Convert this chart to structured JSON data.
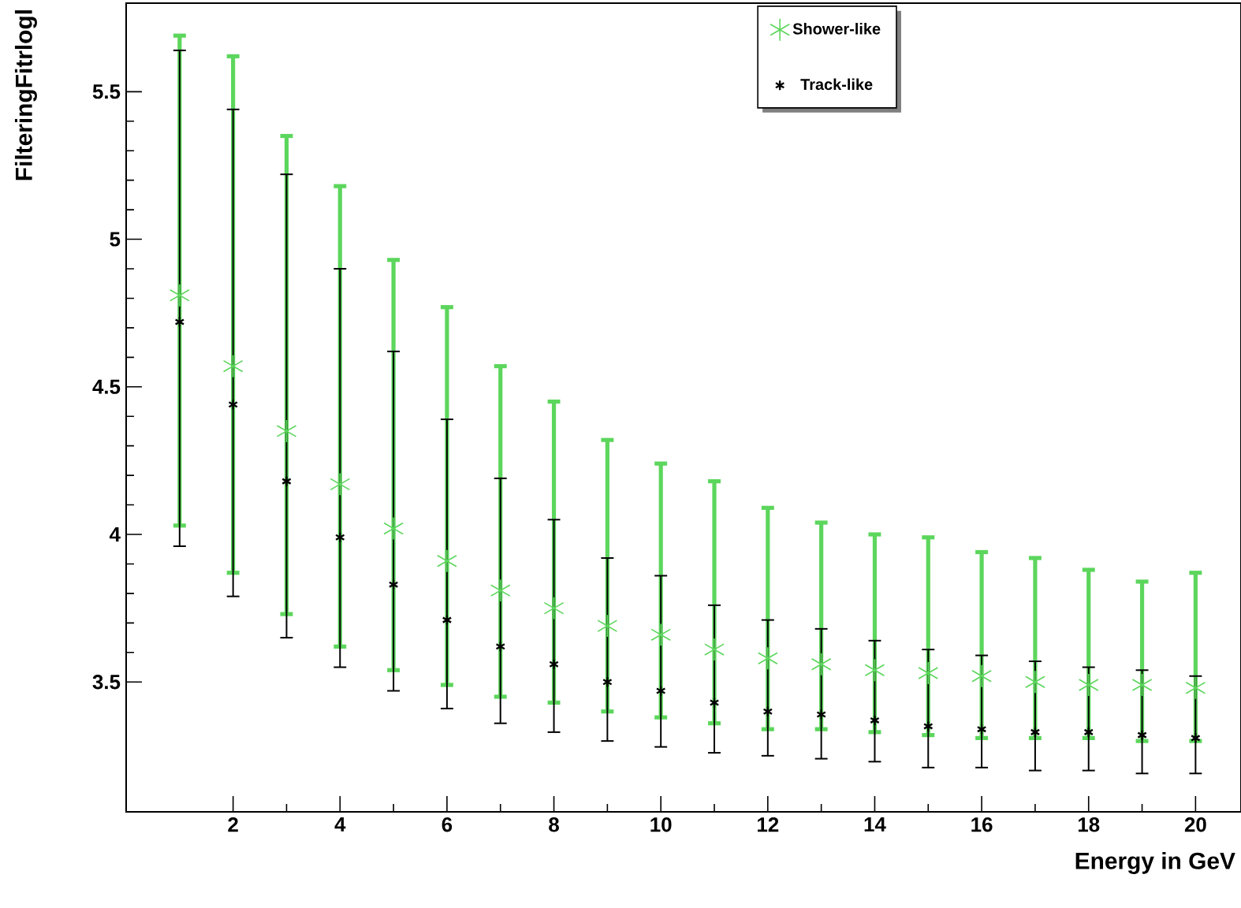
{
  "chart_data": {
    "type": "scatter",
    "xlabel": "Energy in GeV",
    "ylabel": "FilteringFitrlogl",
    "x": [
      1,
      2,
      3,
      4,
      5,
      6,
      7,
      8,
      9,
      10,
      11,
      12,
      13,
      14,
      15,
      16,
      17,
      18,
      19,
      20
    ],
    "xlim": [
      0,
      20.85
    ],
    "ylim": [
      3.06,
      5.8
    ],
    "xticks": [
      2,
      4,
      6,
      8,
      10,
      12,
      14,
      16,
      18,
      20
    ],
    "yticks": [
      3.5,
      4,
      4.5,
      5,
      5.5
    ],
    "marker": "cross",
    "legend": "top",
    "grid": false,
    "series": [
      {
        "name": "Shower-like",
        "color": "#5cd65c",
        "values": [
          4.81,
          4.57,
          4.35,
          4.17,
          4.02,
          3.91,
          3.81,
          3.75,
          3.69,
          3.66,
          3.61,
          3.58,
          3.56,
          3.54,
          3.53,
          3.52,
          3.5,
          3.49,
          3.49,
          3.48
        ],
        "errors": [
          [
            4.03,
            5.69
          ],
          [
            3.87,
            5.62
          ],
          [
            3.73,
            5.35
          ],
          [
            3.62,
            5.18
          ],
          [
            3.54,
            4.93
          ],
          [
            3.49,
            4.77
          ],
          [
            3.45,
            4.57
          ],
          [
            3.43,
            4.45
          ],
          [
            3.4,
            4.32
          ],
          [
            3.38,
            4.24
          ],
          [
            3.36,
            4.18
          ],
          [
            3.34,
            4.09
          ],
          [
            3.34,
            4.04
          ],
          [
            3.33,
            4.0
          ],
          [
            3.32,
            3.99
          ],
          [
            3.31,
            3.94
          ],
          [
            3.31,
            3.92
          ],
          [
            3.31,
            3.88
          ],
          [
            3.3,
            3.84
          ],
          [
            3.3,
            3.87
          ]
        ]
      },
      {
        "name": "Track-like",
        "color": "#000000",
        "values": [
          4.72,
          4.44,
          4.18,
          3.99,
          3.83,
          3.71,
          3.62,
          3.56,
          3.5,
          3.47,
          3.43,
          3.4,
          3.39,
          3.37,
          3.35,
          3.34,
          3.33,
          3.33,
          3.32,
          3.31
        ],
        "errors": [
          [
            3.96,
            5.64
          ],
          [
            3.79,
            5.44
          ],
          [
            3.65,
            5.22
          ],
          [
            3.55,
            4.9
          ],
          [
            3.47,
            4.62
          ],
          [
            3.41,
            4.39
          ],
          [
            3.36,
            4.19
          ],
          [
            3.33,
            4.05
          ],
          [
            3.3,
            3.92
          ],
          [
            3.28,
            3.86
          ],
          [
            3.26,
            3.76
          ],
          [
            3.25,
            3.71
          ],
          [
            3.24,
            3.68
          ],
          [
            3.23,
            3.64
          ],
          [
            3.21,
            3.61
          ],
          [
            3.21,
            3.59
          ],
          [
            3.2,
            3.57
          ],
          [
            3.2,
            3.55
          ],
          [
            3.19,
            3.54
          ],
          [
            3.19,
            3.52
          ]
        ]
      }
    ]
  }
}
